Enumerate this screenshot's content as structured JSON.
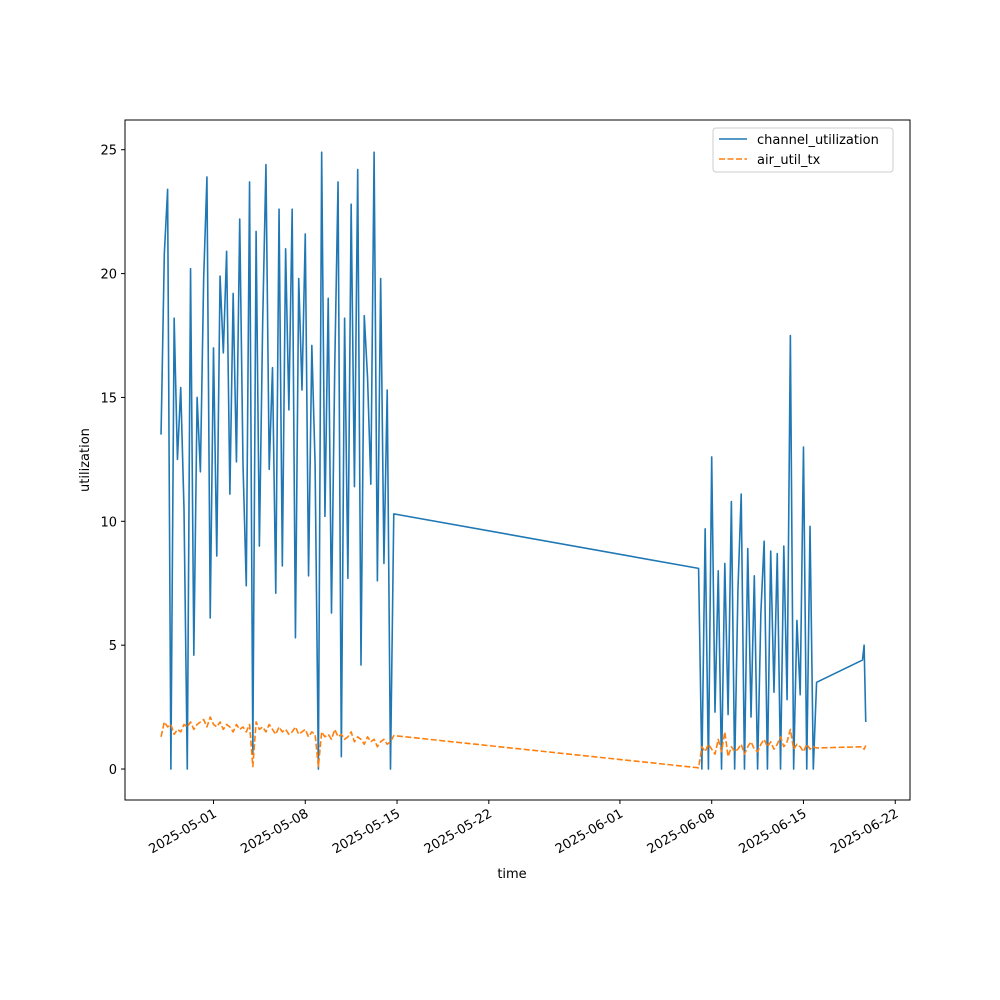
{
  "chart_data": {
    "type": "line",
    "xlabel": "time",
    "ylabel": "utilization",
    "x": [
      "2025-04-27T00:00",
      "2025-04-27T06:00",
      "2025-04-27T12:00",
      "2025-04-27T18:00",
      "2025-04-28T00:00",
      "2025-04-28T06:00",
      "2025-04-28T12:00",
      "2025-04-28T18:00",
      "2025-04-29T00:00",
      "2025-04-29T06:00",
      "2025-04-29T12:00",
      "2025-04-29T18:00",
      "2025-04-30T00:00",
      "2025-04-30T06:00",
      "2025-04-30T12:00",
      "2025-04-30T18:00",
      "2025-05-01T00:00",
      "2025-05-01T06:00",
      "2025-05-01T12:00",
      "2025-05-01T18:00",
      "2025-05-02T00:00",
      "2025-05-02T06:00",
      "2025-05-02T12:00",
      "2025-05-02T18:00",
      "2025-05-03T00:00",
      "2025-05-03T06:00",
      "2025-05-03T12:00",
      "2025-05-03T18:00",
      "2025-05-04T00:00",
      "2025-05-04T06:00",
      "2025-05-04T12:00",
      "2025-05-04T18:00",
      "2025-05-05T00:00",
      "2025-05-05T06:00",
      "2025-05-05T12:00",
      "2025-05-05T18:00",
      "2025-05-06T00:00",
      "2025-05-06T06:00",
      "2025-05-06T12:00",
      "2025-05-06T18:00",
      "2025-05-07T00:00",
      "2025-05-07T06:00",
      "2025-05-07T12:00",
      "2025-05-07T18:00",
      "2025-05-08T00:00",
      "2025-05-08T06:00",
      "2025-05-08T12:00",
      "2025-05-08T18:00",
      "2025-05-09T00:00",
      "2025-05-09T06:00",
      "2025-05-09T12:00",
      "2025-05-09T18:00",
      "2025-05-10T00:00",
      "2025-05-10T06:00",
      "2025-05-10T12:00",
      "2025-05-10T18:00",
      "2025-05-11T00:00",
      "2025-05-11T06:00",
      "2025-05-11T12:00",
      "2025-05-11T18:00",
      "2025-05-12T00:00",
      "2025-05-12T06:00",
      "2025-05-12T12:00",
      "2025-05-12T18:00",
      "2025-05-13T00:00",
      "2025-05-13T06:00",
      "2025-05-13T12:00",
      "2025-05-13T18:00",
      "2025-05-14T00:00",
      "2025-05-14T06:00",
      "2025-05-14T12:00",
      "2025-05-14T18:00",
      "2025-06-07T00:00",
      "2025-06-07T06:00",
      "2025-06-07T12:00",
      "2025-06-07T18:00",
      "2025-06-08T00:00",
      "2025-06-08T06:00",
      "2025-06-08T12:00",
      "2025-06-08T18:00",
      "2025-06-09T00:00",
      "2025-06-09T06:00",
      "2025-06-09T12:00",
      "2025-06-09T18:00",
      "2025-06-10T00:00",
      "2025-06-10T06:00",
      "2025-06-10T12:00",
      "2025-06-10T18:00",
      "2025-06-11T00:00",
      "2025-06-11T06:00",
      "2025-06-11T12:00",
      "2025-06-11T18:00",
      "2025-06-12T00:00",
      "2025-06-12T06:00",
      "2025-06-12T12:00",
      "2025-06-12T18:00",
      "2025-06-13T00:00",
      "2025-06-13T06:00",
      "2025-06-13T12:00",
      "2025-06-13T18:00",
      "2025-06-14T00:00",
      "2025-06-14T06:00",
      "2025-06-14T12:00",
      "2025-06-14T18:00",
      "2025-06-15T00:00",
      "2025-06-15T06:00",
      "2025-06-15T12:00",
      "2025-06-15T18:00",
      "2025-06-16T00:00",
      "2025-06-19T12:00",
      "2025-06-19T15:00",
      "2025-06-19T18:00"
    ],
    "series": [
      {
        "name": "channel_utilization",
        "color": "#1f77b4",
        "linestyle": "solid",
        "values": [
          13.5,
          20.8,
          23.4,
          0,
          18.2,
          12.5,
          15.4,
          10.5,
          0,
          20.2,
          4.6,
          15.0,
          12.0,
          19.8,
          23.9,
          6.1,
          17.0,
          8.6,
          19.9,
          16.8,
          20.9,
          11.1,
          19.2,
          12.4,
          22.2,
          12.3,
          7.4,
          23.7,
          0.6,
          21.7,
          9.0,
          18.0,
          24.4,
          12.1,
          16.2,
          7.1,
          22.6,
          8.2,
          21.0,
          14.5,
          22.6,
          5.3,
          19.8,
          15.3,
          21.6,
          7.8,
          17.1,
          12.3,
          0,
          24.9,
          10.2,
          19.0,
          6.3,
          16.3,
          23.7,
          0.5,
          18.2,
          7.7,
          22.8,
          11.4,
          24.2,
          4.2,
          18.3,
          15.8,
          11.5,
          24.9,
          7.6,
          19.8,
          8.3,
          15.3,
          0,
          10.3,
          8.1,
          0,
          9.7,
          0,
          12.6,
          2.3,
          8.0,
          0,
          8.3,
          2.2,
          10.8,
          0,
          7.2,
          11.1,
          0,
          8.9,
          2.1,
          7.8,
          0,
          6.3,
          9.2,
          0,
          8.8,
          3.1,
          8.7,
          0,
          9.0,
          2.8,
          17.5,
          0,
          6.0,
          3.0,
          13.0,
          0,
          9.8,
          0,
          3.5,
          4.4,
          5.0,
          1.9
        ]
      },
      {
        "name": "air_util_tx",
        "color": "#ff7f0e",
        "linestyle": "dashed",
        "values": [
          1.3,
          1.9,
          1.7,
          1.8,
          1.4,
          1.6,
          1.5,
          1.8,
          1.7,
          1.9,
          1.6,
          1.8,
          1.9,
          2.0,
          1.7,
          2.1,
          1.8,
          1.7,
          1.9,
          1.6,
          1.8,
          1.7,
          1.5,
          1.8,
          1.6,
          1.7,
          1.5,
          1.8,
          0.1,
          1.9,
          1.6,
          1.7,
          1.5,
          1.8,
          1.6,
          1.4,
          1.7,
          1.5,
          1.6,
          1.4,
          1.5,
          1.7,
          1.4,
          1.5,
          1.6,
          1.3,
          1.5,
          1.4,
          0.1,
          1.5,
          1.3,
          1.4,
          1.2,
          1.6,
          1.3,
          1.4,
          1.2,
          1.3,
          1.5,
          1.1,
          1.3,
          1.2,
          1.0,
          1.3,
          1.1,
          1.2,
          0.9,
          1.1,
          1.2,
          1.0,
          1.1,
          1.35,
          0.05,
          0.9,
          0.7,
          1.0,
          0.8,
          0.6,
          1.2,
          0.7,
          1.5,
          0.5,
          0.9,
          0.7,
          0.8,
          1.0,
          0.6,
          0.9,
          1.1,
          0.8,
          0.7,
          1.0,
          1.2,
          0.9,
          1.1,
          0.8,
          1.0,
          1.3,
          0.9,
          1.1,
          1.6,
          0.8,
          1.0,
          0.9,
          0.7,
          1.0,
          0.8,
          0.9,
          0.85,
          0.9,
          0.8,
          0.95
        ]
      }
    ],
    "xlim": [
      "2025-04-24T06:00",
      "2025-06-23T03:00"
    ],
    "xticks": [
      "2025-05-01",
      "2025-05-08",
      "2025-05-15",
      "2025-05-22",
      "2025-06-01",
      "2025-06-08",
      "2025-06-15",
      "2025-06-22"
    ],
    "ylim": [
      -1.25,
      26.2
    ],
    "yticks": [
      0,
      5,
      10,
      15,
      20,
      25
    ],
    "grid": false,
    "legend": "upper right"
  }
}
